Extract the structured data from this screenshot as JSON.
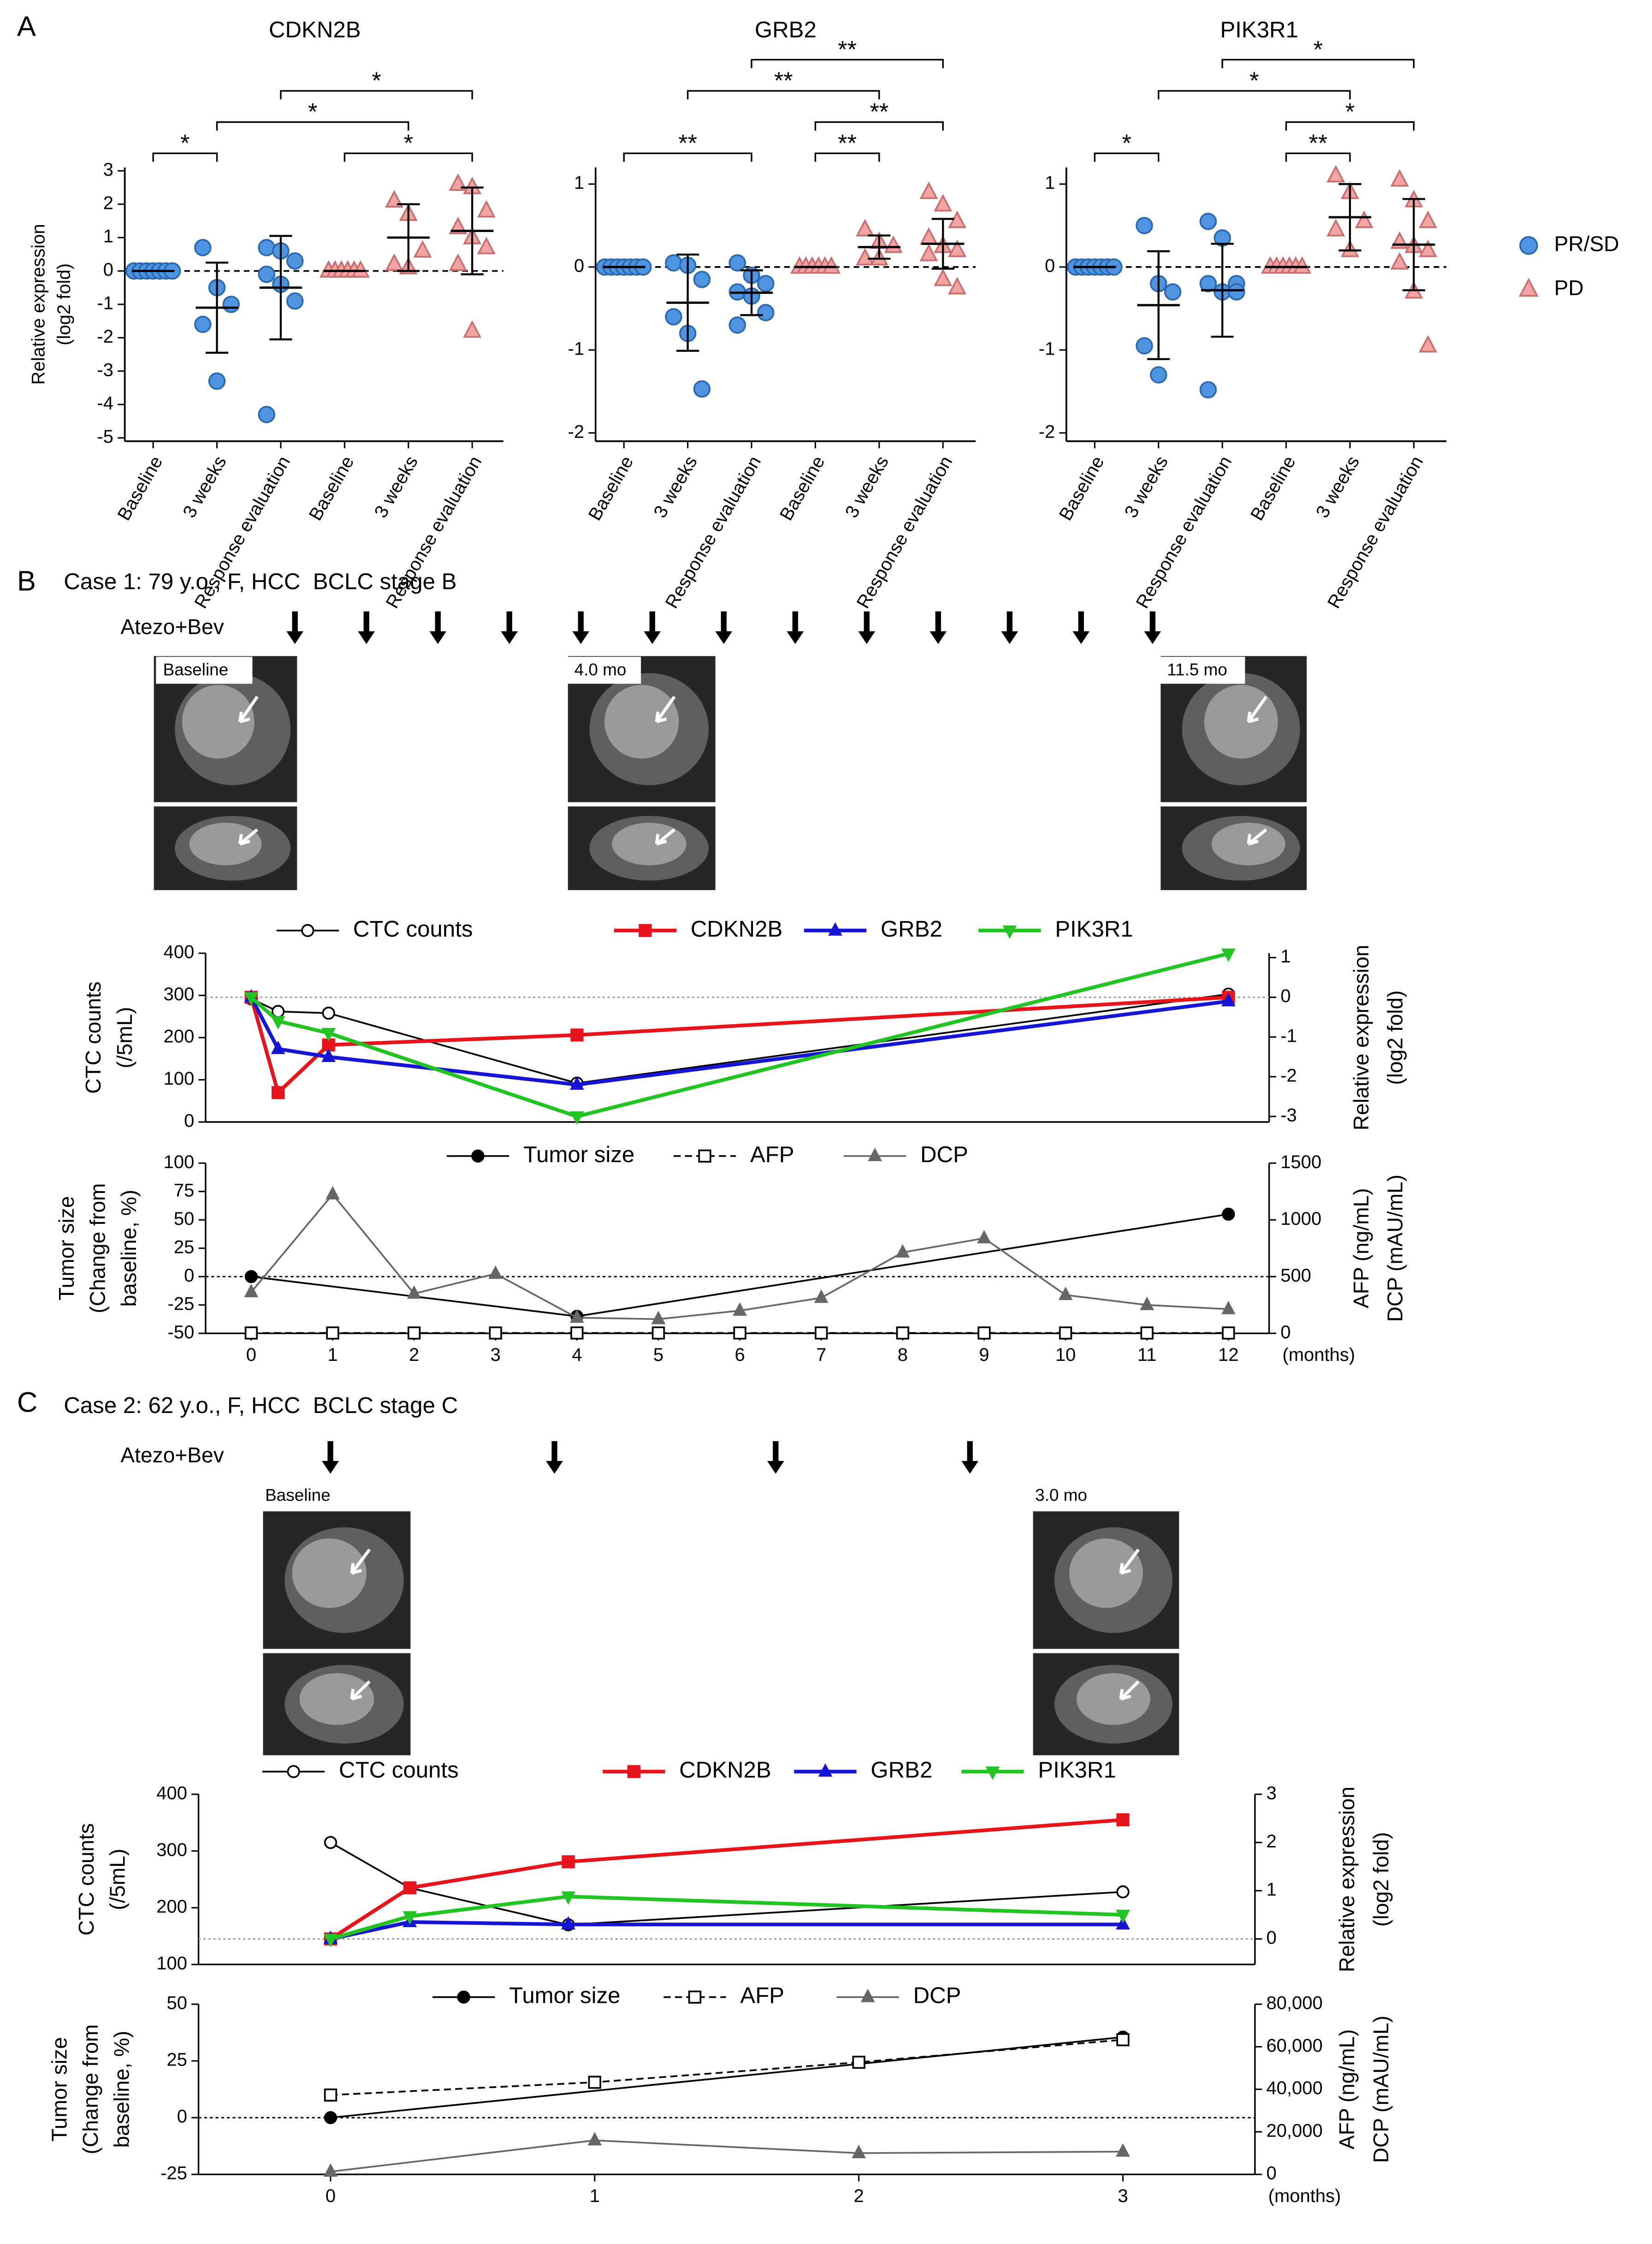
{
  "panel_labels": [
    "A",
    "B",
    "C"
  ],
  "legend_A": [
    {
      "name": "PR/SD",
      "color": "#4f94e0",
      "stroke": "#2a69b0",
      "marker": "circle"
    },
    {
      "name": "PD",
      "color": "#f2a3a3",
      "stroke": "#c96d6d",
      "marker": "triangle"
    }
  ],
  "case_B": {
    "title": "Case 1: 79 y.o., F, HCC  BCLC stage B",
    "treatment": "Atezo+Bev",
    "images": [
      "Baseline",
      "4.0 mo",
      "11.5 mo"
    ]
  },
  "case_C": {
    "title": "Case 2: 62 y.o., F, HCC  BCLC stage C",
    "treatment": "Atezo+Bev",
    "images": [
      "Baseline",
      "3.0 mo"
    ]
  },
  "chart_data": [
    {
      "type": "dot",
      "title": "CDKN2B",
      "ylabel": [
        "Relative expression",
        "(log2 fold)"
      ],
      "categories": [
        "Baseline",
        "3 weeks",
        "Response evaluation",
        "Baseline",
        "3 weeks",
        "Response evaluation"
      ],
      "group": [
        0,
        0,
        0,
        1,
        1,
        1
      ],
      "ylim": [
        -5.1,
        3.1
      ],
      "yticks": [
        -5,
        -4,
        -3,
        -2,
        -1,
        0,
        1,
        2,
        3
      ],
      "reference_line": 0,
      "points": [
        [
          0,
          0,
          0,
          0,
          0,
          0,
          0
        ],
        [
          0.7,
          -0.5,
          -1.0,
          -1.6,
          -3.3
        ],
        [
          0.7,
          0.6,
          0.3,
          -0.1,
          -0.4,
          -0.9,
          -4.3
        ],
        [
          0,
          0,
          0,
          0,
          0,
          0
        ],
        [
          2.1,
          1.7,
          0.6,
          0.2,
          0.1
        ],
        [
          2.6,
          2.5,
          1.8,
          1.3,
          1.0,
          0.7,
          0.2,
          -1.8
        ]
      ],
      "mean": [
        0,
        -1.1,
        -0.5,
        0,
        1.0,
        1.2
      ],
      "sd": [
        0,
        1.35,
        1.55,
        0,
        1.0,
        1.3
      ],
      "brackets": [
        {
          "from": 0,
          "to": 1,
          "label": "*"
        },
        {
          "from": 3,
          "to": 5,
          "label": "*"
        },
        {
          "from": 1,
          "to": 4,
          "label": "*"
        },
        {
          "from": 2,
          "to": 5,
          "label": "*"
        }
      ]
    },
    {
      "type": "dot",
      "title": "GRB2",
      "categories": [
        "Baseline",
        "3 weeks",
        "Response evaluation",
        "Baseline",
        "3 weeks",
        "Response evaluation"
      ],
      "group": [
        0,
        0,
        0,
        1,
        1,
        1
      ],
      "ylim": [
        -2.1,
        1.2
      ],
      "yticks": [
        -2,
        -1,
        0,
        1
      ],
      "reference_line": 0,
      "points": [
        [
          0,
          0,
          0,
          0,
          0,
          0,
          0
        ],
        [
          0.05,
          0.02,
          -0.15,
          -0.6,
          -0.8,
          -1.47
        ],
        [
          0.05,
          -0.1,
          -0.2,
          -0.3,
          -0.35,
          -0.55,
          -0.7
        ],
        [
          0,
          0,
          0,
          0,
          0,
          0
        ],
        [
          0.45,
          0.3,
          0.25,
          0.1,
          0.1
        ],
        [
          0.9,
          0.75,
          0.55,
          0.35,
          0.25,
          0.2,
          0.15,
          -0.15,
          -0.25
        ]
      ],
      "mean": [
        0,
        -0.43,
        -0.31,
        0,
        0.24,
        0.28
      ],
      "sd": [
        0,
        0.58,
        0.27,
        0,
        0.14,
        0.3
      ],
      "brackets": [
        {
          "from": 0,
          "to": 2,
          "label": "**"
        },
        {
          "from": 3,
          "to": 4,
          "label": "**"
        },
        {
          "from": 3,
          "to": 5,
          "label": "**"
        },
        {
          "from": 1,
          "to": 4,
          "label": "**"
        },
        {
          "from": 2,
          "to": 5,
          "label": "**"
        }
      ]
    },
    {
      "type": "dot",
      "title": "PIK3R1",
      "categories": [
        "Baseline",
        "3 weeks",
        "Response evaluation",
        "Baseline",
        "3 weeks",
        "Response evaluation"
      ],
      "group": [
        0,
        0,
        0,
        1,
        1,
        1
      ],
      "ylim": [
        -2.1,
        1.2
      ],
      "yticks": [
        -2,
        -1,
        0,
        1
      ],
      "reference_line": 0,
      "points": [
        [
          0,
          0,
          0,
          0,
          0,
          0,
          0
        ],
        [
          0.5,
          -0.2,
          -0.3,
          -0.95,
          -1.3
        ],
        [
          0.55,
          0.35,
          -0.2,
          -0.2,
          -0.3,
          -0.3,
          -1.48
        ],
        [
          0,
          0,
          0,
          0,
          0,
          0
        ],
        [
          1.1,
          0.9,
          0.55,
          0.45,
          0.2
        ],
        [
          1.05,
          0.8,
          0.55,
          0.3,
          0.25,
          0.2,
          0.05,
          -0.3,
          -0.95
        ]
      ],
      "mean": [
        0,
        -0.46,
        -0.28,
        0,
        0.6,
        0.27
      ],
      "sd": [
        0,
        0.65,
        0.56,
        0,
        0.4,
        0.55
      ],
      "brackets": [
        {
          "from": 0,
          "to": 1,
          "label": "*"
        },
        {
          "from": 3,
          "to": 4,
          "label": "**"
        },
        {
          "from": 3,
          "to": 5,
          "label": "*"
        },
        {
          "from": 1,
          "to": 4,
          "label": "*"
        },
        {
          "from": 2,
          "to": 5,
          "label": "*"
        }
      ]
    },
    {
      "type": "line",
      "ylabel": [
        "CTC counts",
        "(/5mL)"
      ],
      "y2label": [
        "Relative expression",
        "(log2 fold)"
      ],
      "xlim": [
        -0.56,
        12.5
      ],
      "ylim": [
        0,
        400
      ],
      "yticks": [
        0,
        100,
        200,
        300,
        400
      ],
      "y2lim": [
        -3.14,
        1.11
      ],
      "y2ticks": [
        -3,
        -2,
        -1,
        0,
        1
      ],
      "reference_line": {
        "value": 0,
        "axis": "y2"
      },
      "series": [
        {
          "name": "CTC counts",
          "color": "#000000",
          "marker": "circle",
          "open": true,
          "axis": "y",
          "x": [
            0,
            0.33,
            0.95,
            4,
            12
          ],
          "values": [
            292,
            262,
            258,
            92,
            303
          ]
        },
        {
          "name": "CDKN2B",
          "color": "#e8141b",
          "marker": "square",
          "axis": "y2",
          "x": [
            0,
            0.33,
            0.95,
            4,
            12
          ],
          "values": [
            0,
            -2.4,
            -1.2,
            -0.95,
            0
          ]
        },
        {
          "name": "GRB2",
          "color": "#1515d6",
          "marker": "triangle",
          "axis": "y2",
          "x": [
            0,
            0.33,
            0.95,
            4,
            12
          ],
          "values": [
            0,
            -1.3,
            -1.5,
            -2.2,
            -0.1
          ]
        },
        {
          "name": "PIK3R1",
          "color": "#22c422",
          "marker": "triangle-down",
          "axis": "y2",
          "x": [
            0,
            0.33,
            0.95,
            4,
            12
          ],
          "values": [
            0,
            -0.6,
            -0.9,
            -3.0,
            1.1
          ]
        }
      ]
    },
    {
      "type": "line",
      "ylabel": [
        "Tumor size",
        "(Change from",
        "baseline, %)"
      ],
      "y2label": [
        "AFP (ng/mL)",
        "DCP (mAU/mL)"
      ],
      "xlim": [
        -0.56,
        12.5
      ],
      "xticks": [
        0,
        1,
        2,
        3,
        4,
        5,
        6,
        7,
        8,
        9,
        10,
        11,
        12
      ],
      "xlabel": "(months)",
      "ylim": [
        -50,
        100
      ],
      "yticks": [
        -50,
        -25,
        0,
        25,
        50,
        75,
        100
      ],
      "y2lim": [
        0,
        1500
      ],
      "y2ticks": [
        0,
        500,
        1000,
        1500
      ],
      "reference_line": {
        "value": 0,
        "axis": "y"
      },
      "series": [
        {
          "name": "Tumor size",
          "color": "#000000",
          "marker": "circle",
          "axis": "y",
          "x": [
            0,
            4,
            12
          ],
          "values": [
            0,
            -35,
            55
          ]
        },
        {
          "name": "AFP",
          "color": "#000000",
          "marker": "square",
          "open": true,
          "dash": true,
          "axis": "y2",
          "x": [
            0,
            1,
            2,
            3,
            4,
            5,
            6,
            7,
            8,
            9,
            10,
            11,
            12
          ],
          "values": [
            3,
            3,
            3,
            3,
            3,
            3,
            3,
            3,
            3,
            3,
            3,
            3,
            3
          ]
        },
        {
          "name": "DCP",
          "color": "#666666",
          "marker": "triangle",
          "axis": "y2",
          "x": [
            0,
            1,
            2,
            3,
            4,
            5,
            6,
            7,
            8,
            9,
            10,
            11,
            12
          ],
          "values": [
            363,
            1225,
            350,
            525,
            138,
            125,
            200,
            313,
            713,
            838,
            338,
            250,
            213
          ]
        }
      ]
    },
    {
      "type": "line",
      "ylabel": [
        "CTC counts",
        "(/5mL)"
      ],
      "y2label": [
        "Relative expression",
        "(log2 fold)"
      ],
      "xlim": [
        -0.5,
        3.5
      ],
      "ylim": [
        100,
        400
      ],
      "yticks": [
        100,
        200,
        300,
        400
      ],
      "y2lim": [
        -0.53,
        3
      ],
      "y2ticks": [
        0,
        1,
        2,
        3
      ],
      "reference_line": {
        "value": 0,
        "axis": "y2"
      },
      "series": [
        {
          "name": "CTC counts",
          "color": "#000000",
          "marker": "circle",
          "open": true,
          "axis": "y",
          "x": [
            0,
            0.3,
            0.9,
            3
          ],
          "values": [
            315,
            235,
            170,
            228
          ]
        },
        {
          "name": "CDKN2B",
          "color": "#e8141b",
          "marker": "square",
          "axis": "y2",
          "x": [
            0,
            0.3,
            0.9,
            3
          ],
          "values": [
            0,
            1.06,
            1.6,
            2.47
          ]
        },
        {
          "name": "GRB2",
          "color": "#1515d6",
          "marker": "triangle",
          "axis": "y2",
          "x": [
            0,
            0.3,
            0.9,
            3
          ],
          "values": [
            0,
            0.35,
            0.3,
            0.3
          ]
        },
        {
          "name": "PIK3R1",
          "color": "#22c422",
          "marker": "triangle-down",
          "axis": "y2",
          "x": [
            0,
            0.3,
            0.9,
            3
          ],
          "values": [
            0,
            0.47,
            0.88,
            0.5
          ]
        }
      ]
    },
    {
      "type": "line",
      "ylabel": [
        "Tumor size",
        "(Change from",
        "baseline, %)"
      ],
      "y2label": [
        "AFP (ng/mL)",
        "DCP (mAU/mL)"
      ],
      "xlim": [
        -0.5,
        3.5
      ],
      "xticks": [
        0,
        1,
        2,
        3
      ],
      "xlabel": "(months)",
      "ylim": [
        -25,
        50
      ],
      "yticks": [
        -25,
        0,
        25,
        50
      ],
      "y2lim": [
        0,
        80000
      ],
      "y2ticks": [
        0,
        {
          "value": 20000,
          "label": "20,000"
        },
        {
          "value": 40000,
          "label": "40,000"
        },
        {
          "value": 60000,
          "label": "60,000"
        },
        {
          "value": 80000,
          "label": "80,000"
        }
      ],
      "reference_line": {
        "value": 0,
        "axis": "y"
      },
      "series": [
        {
          "name": "Tumor size",
          "color": "#000000",
          "marker": "circle",
          "axis": "y",
          "x": [
            0,
            3
          ],
          "values": [
            0,
            35.5
          ]
        },
        {
          "name": "AFP",
          "color": "#000000",
          "marker": "square",
          "open": true,
          "dash": true,
          "axis": "y2",
          "x": [
            0,
            1,
            2,
            3
          ],
          "values": [
            37300,
            43300,
            52700,
            63300
          ]
        },
        {
          "name": "DCP",
          "color": "#666666",
          "marker": "triangle",
          "axis": "y2",
          "x": [
            0,
            1,
            2,
            3
          ],
          "values": [
            1300,
            16000,
            10000,
            10700
          ]
        }
      ]
    }
  ]
}
